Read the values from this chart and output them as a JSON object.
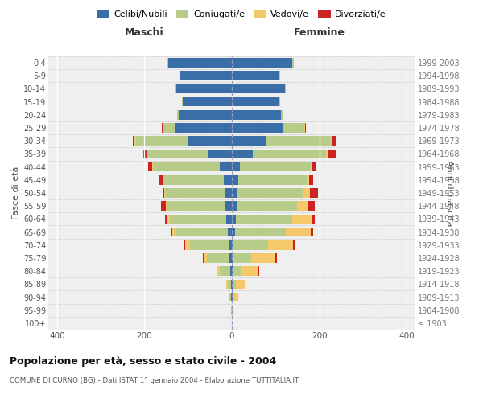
{
  "age_groups": [
    "100+",
    "95-99",
    "90-94",
    "85-89",
    "80-84",
    "75-79",
    "70-74",
    "65-69",
    "60-64",
    "55-59",
    "50-54",
    "45-49",
    "40-44",
    "35-39",
    "30-34",
    "25-29",
    "20-24",
    "15-19",
    "10-14",
    "5-9",
    "0-4"
  ],
  "birth_years": [
    "≤ 1903",
    "1904-1908",
    "1909-1913",
    "1914-1918",
    "1919-1923",
    "1924-1928",
    "1929-1933",
    "1934-1938",
    "1939-1943",
    "1944-1948",
    "1949-1953",
    "1954-1958",
    "1959-1963",
    "1964-1968",
    "1969-1973",
    "1974-1978",
    "1979-1983",
    "1984-1988",
    "1989-1993",
    "1994-1998",
    "1999-2003"
  ],
  "maschi_celibi": [
    0,
    0,
    2,
    2,
    3,
    5,
    8,
    10,
    12,
    14,
    14,
    18,
    28,
    55,
    100,
    130,
    122,
    112,
    128,
    118,
    145
  ],
  "maschi_coniugati": [
    0,
    1,
    5,
    8,
    25,
    52,
    88,
    118,
    130,
    133,
    138,
    138,
    152,
    138,
    120,
    28,
    4,
    2,
    2,
    2,
    4
  ],
  "maschi_vedovi": [
    0,
    0,
    1,
    2,
    5,
    8,
    10,
    8,
    6,
    4,
    2,
    2,
    2,
    2,
    2,
    1,
    0,
    0,
    0,
    0,
    0
  ],
  "maschi_divorziati": [
    0,
    0,
    0,
    0,
    0,
    2,
    3,
    4,
    5,
    12,
    5,
    8,
    10,
    8,
    5,
    2,
    0,
    0,
    0,
    0,
    0
  ],
  "femmine_nubili": [
    0,
    0,
    2,
    2,
    3,
    3,
    4,
    8,
    10,
    12,
    12,
    14,
    18,
    48,
    78,
    118,
    112,
    108,
    122,
    108,
    138
  ],
  "femmine_coniugate": [
    0,
    1,
    4,
    8,
    18,
    42,
    78,
    115,
    128,
    138,
    152,
    158,
    162,
    168,
    148,
    48,
    6,
    2,
    2,
    2,
    4
  ],
  "femmine_vedove": [
    0,
    1,
    8,
    20,
    40,
    55,
    58,
    58,
    44,
    24,
    14,
    4,
    4,
    4,
    4,
    2,
    0,
    0,
    0,
    0,
    0
  ],
  "femmine_divorziate": [
    0,
    0,
    0,
    0,
    2,
    3,
    4,
    5,
    8,
    15,
    20,
    10,
    10,
    20,
    8,
    2,
    0,
    0,
    0,
    0,
    0
  ],
  "colors": {
    "celibi_nubili": "#3a6ea8",
    "coniugati": "#b8cc8a",
    "vedovi": "#f5c86a",
    "divorziati": "#cc2222"
  },
  "legend_labels": [
    "Celibi/Nubili",
    "Coniugati/e",
    "Vedovi/e",
    "Divorziati/e"
  ],
  "title": "Popolazione per età, sesso e stato civile - 2004",
  "subtitle": "COMUNE DI CURNO (BG) - Dati ISTAT 1° gennaio 2004 - Elaborazione TUTTITALIA.IT",
  "maschi_label": "Maschi",
  "femmine_label": "Femmine",
  "ylabel_left": "Fasce di età",
  "ylabel_right": "Anni di nascita",
  "xlim": 420,
  "bg_color": "#ffffff",
  "plot_bg": "#efefef"
}
